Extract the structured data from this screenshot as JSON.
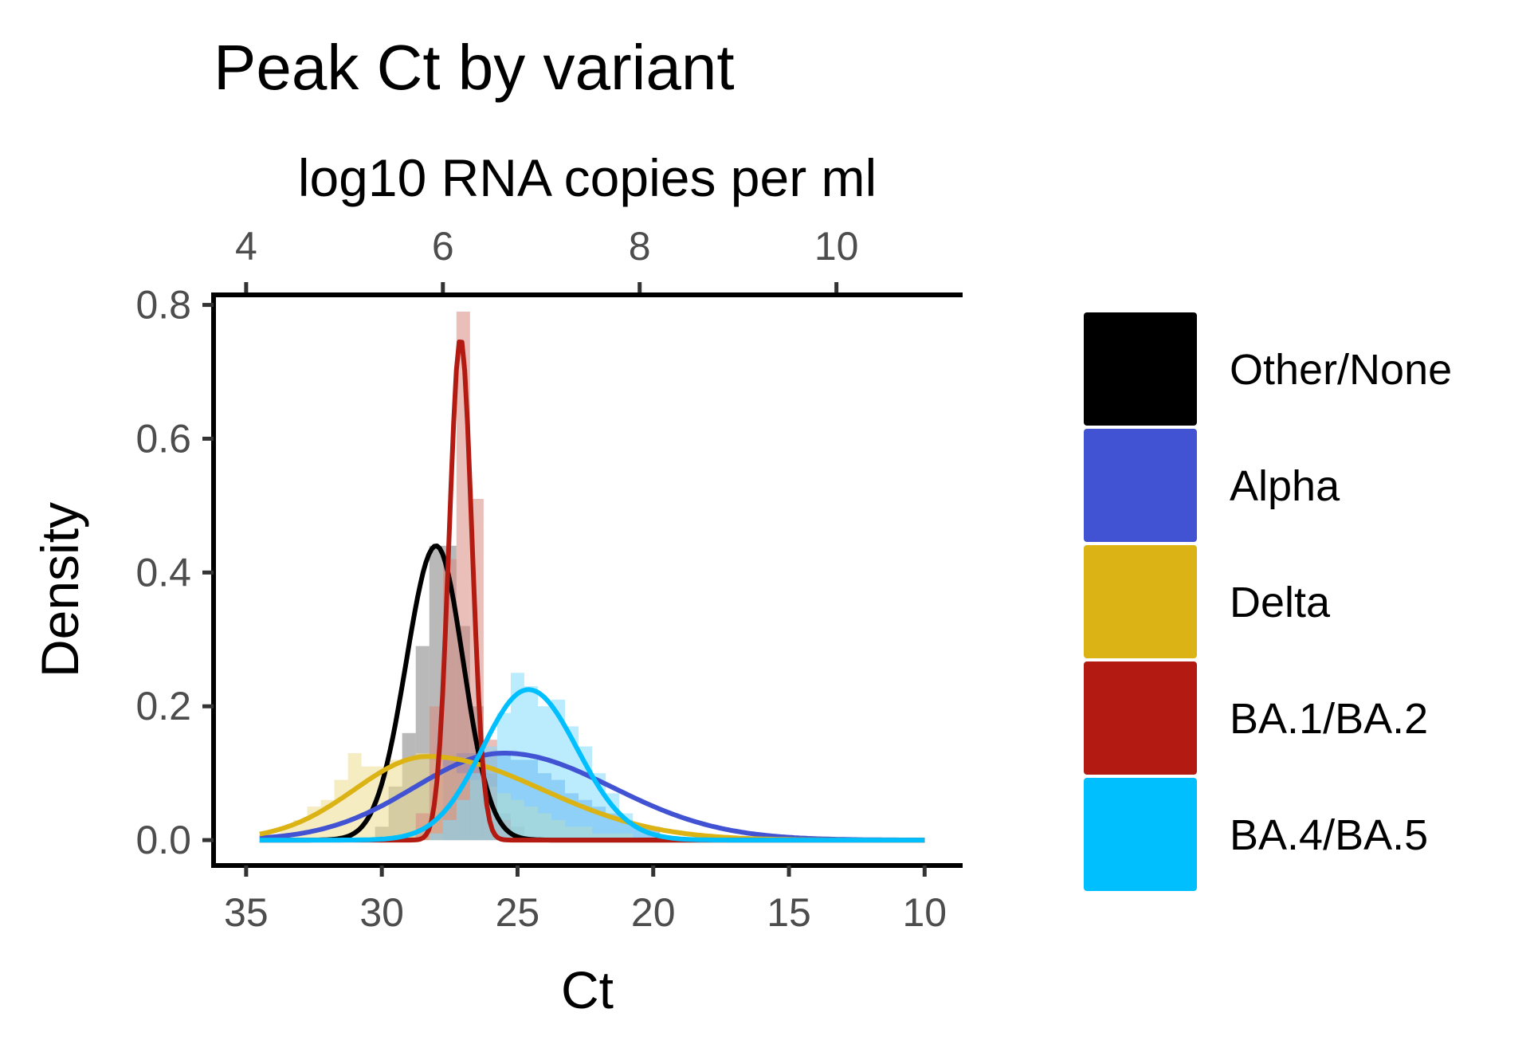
{
  "chart_data": {
    "type": "area",
    "title": "Peak Ct by variant",
    "xlabel": "Ct",
    "ylabel": "Density",
    "x_reversed": true,
    "xlim": [
      36.2,
      8.6
    ],
    "ylim": [
      -0.038,
      0.815
    ],
    "x_ticks": [
      35,
      30,
      25,
      20,
      15,
      10
    ],
    "y_ticks": [
      0.0,
      0.2,
      0.4,
      0.6,
      0.8
    ],
    "y_tick_labels": [
      "0.0",
      "0.2",
      "0.4",
      "0.6",
      "0.8"
    ],
    "secondary_x_axis": {
      "label": "log10 RNA copies per ml",
      "ticks": [
        4,
        6,
        8,
        10
      ],
      "ct_at_tick": [
        35.0,
        27.75,
        20.5,
        13.25
      ]
    },
    "legend_position": "right",
    "grid": false,
    "series": [
      {
        "name": "Other/None",
        "color": "#000000",
        "fill": "#808080",
        "curve": {
          "mu": 28.0,
          "sd_left": 1.1,
          "sd_right": 1.0,
          "peak": 0.44
        },
        "histogram": {
          "bin_width": 0.5,
          "bins": [
            [
              30.0,
              0.02
            ],
            [
              29.5,
              0.08
            ],
            [
              29.0,
              0.16
            ],
            [
              28.5,
              0.29
            ],
            [
              28.0,
              0.44
            ],
            [
              27.5,
              0.44
            ],
            [
              27.0,
              0.32
            ],
            [
              26.5,
              0.2
            ],
            [
              26.0,
              0.1
            ],
            [
              25.5,
              0.04
            ],
            [
              25.0,
              0.02
            ]
          ]
        }
      },
      {
        "name": "Alpha",
        "color": "#4152d3",
        "fill": "#4f8fe6",
        "curve": {
          "mu": 25.5,
          "sd_left": 3.3,
          "sd_right": 4.0,
          "peak": 0.13
        },
        "histogram": {
          "bin_width": 0.5,
          "bins": [
            [
              27.5,
              0.12
            ],
            [
              27.0,
              0.13
            ],
            [
              26.5,
              0.13
            ],
            [
              26.0,
              0.13
            ],
            [
              25.5,
              0.13
            ],
            [
              25.0,
              0.12
            ],
            [
              24.5,
              0.12
            ],
            [
              24.0,
              0.1
            ],
            [
              23.5,
              0.09
            ],
            [
              23.0,
              0.07
            ],
            [
              22.5,
              0.06
            ],
            [
              22.0,
              0.05
            ],
            [
              21.5,
              0.04
            ],
            [
              21.0,
              0.03
            ],
            [
              20.5,
              0.02
            ],
            [
              20.0,
              0.02
            ]
          ]
        }
      },
      {
        "name": "Delta",
        "color": "#dbb314",
        "fill": "#eddc8f",
        "curve": {
          "mu": 28.3,
          "sd_left": 2.7,
          "sd_right": 4.2,
          "peak": 0.125
        },
        "histogram": {
          "bin_width": 0.5,
          "bins": [
            [
              33.5,
              0.02
            ],
            [
              33.0,
              0.03
            ],
            [
              32.5,
              0.05
            ],
            [
              32.0,
              0.06
            ],
            [
              31.5,
              0.09
            ],
            [
              31.0,
              0.13
            ],
            [
              30.5,
              0.11
            ],
            [
              30.0,
              0.11
            ],
            [
              29.5,
              0.12
            ],
            [
              29.0,
              0.12
            ],
            [
              28.5,
              0.13
            ],
            [
              28.0,
              0.12
            ],
            [
              27.5,
              0.11
            ],
            [
              27.0,
              0.1
            ],
            [
              26.5,
              0.09
            ],
            [
              26.0,
              0.08
            ],
            [
              25.5,
              0.07
            ],
            [
              25.0,
              0.06
            ],
            [
              24.5,
              0.05
            ],
            [
              24.0,
              0.04
            ],
            [
              23.5,
              0.03
            ],
            [
              23.0,
              0.02
            ],
            [
              22.5,
              0.02
            ],
            [
              22.0,
              0.01
            ],
            [
              21.5,
              0.01
            ],
            [
              21.0,
              0.01
            ]
          ]
        }
      },
      {
        "name": "BA.1/BA.2",
        "color": "#b31b12",
        "fill": "#d98880",
        "curve": {
          "mu": 27.1,
          "sd_left": 0.42,
          "sd_right": 0.42,
          "peak": 0.75
        },
        "histogram": {
          "bin_width": 0.5,
          "bins": [
            [
              28.5,
              0.04
            ],
            [
              28.0,
              0.2
            ],
            [
              27.5,
              0.42
            ],
            [
              27.0,
              0.79
            ],
            [
              26.5,
              0.51
            ],
            [
              26.0,
              0.15
            ],
            [
              25.5,
              0.03
            ]
          ]
        }
      },
      {
        "name": "BA.4/BA.5",
        "color": "#00bfff",
        "fill": "#82dcfb",
        "curve": {
          "mu": 24.6,
          "sd_left": 1.7,
          "sd_right": 1.8,
          "peak": 0.225
        },
        "histogram": {
          "bin_width": 0.5,
          "bins": [
            [
              28.0,
              0.01
            ],
            [
              27.5,
              0.03
            ],
            [
              27.0,
              0.06
            ],
            [
              26.5,
              0.1
            ],
            [
              26.0,
              0.14
            ],
            [
              25.5,
              0.19
            ],
            [
              25.0,
              0.25
            ],
            [
              24.5,
              0.23
            ],
            [
              24.0,
              0.2
            ],
            [
              23.5,
              0.21
            ],
            [
              23.0,
              0.17
            ],
            [
              22.5,
              0.14
            ],
            [
              22.0,
              0.1
            ],
            [
              21.5,
              0.07
            ],
            [
              21.0,
              0.04
            ],
            [
              20.5,
              0.02
            ]
          ]
        }
      }
    ],
    "curve_range": [
      34.5,
      10.0
    ]
  }
}
